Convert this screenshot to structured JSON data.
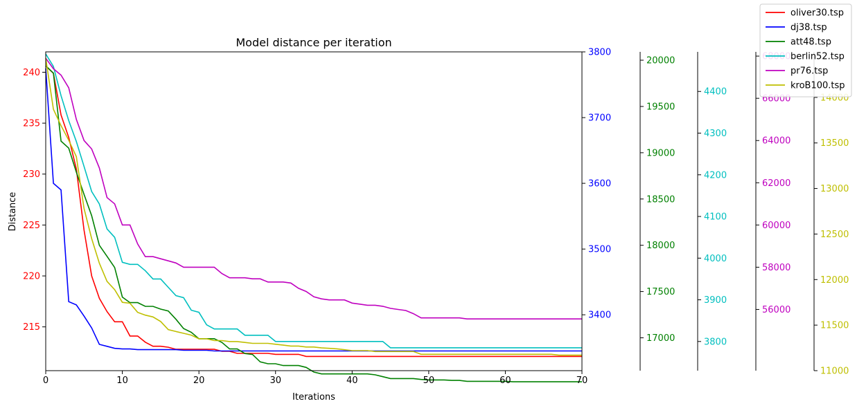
{
  "chart_data": {
    "type": "line",
    "title": "Model distance per iteration",
    "xlabel": "Iterations",
    "ylabel": "Distance",
    "xlim": [
      0,
      70
    ],
    "x_ticks": [
      0,
      10,
      20,
      30,
      40,
      50,
      60,
      70
    ],
    "grid": false,
    "legend_position": "top-right",
    "x": [
      0,
      1,
      2,
      3,
      4,
      5,
      6,
      7,
      8,
      9,
      10,
      11,
      12,
      13,
      14,
      15,
      16,
      17,
      18,
      19,
      20,
      21,
      22,
      23,
      24,
      25,
      26,
      27,
      28,
      29,
      30,
      31,
      32,
      33,
      34,
      35,
      36,
      37,
      38,
      39,
      40,
      41,
      42,
      43,
      44,
      45,
      46,
      47,
      48,
      49,
      50,
      51,
      52,
      53,
      54,
      55,
      56,
      57,
      58,
      59,
      60,
      61,
      62,
      63,
      64,
      65,
      66,
      67,
      68,
      69,
      70
    ],
    "series": [
      {
        "name": "oliver30.tsp",
        "color": "#ff0000",
        "axis": {
          "min": 210.7,
          "max": 242.0,
          "ticks": [
            215,
            220,
            225,
            230,
            235,
            240
          ]
        },
        "values": [
          240.6,
          239.9,
          235.8,
          233.6,
          230.5,
          224.5,
          220.0,
          217.8,
          216.5,
          215.5,
          215.5,
          214.1,
          214.1,
          213.5,
          213.1,
          213.1,
          213.0,
          212.8,
          212.8,
          212.8,
          212.8,
          212.8,
          212.8,
          212.6,
          212.6,
          212.4,
          212.4,
          212.4,
          212.4,
          212.4,
          212.3,
          212.3,
          212.3,
          212.3,
          212.1,
          212.1,
          212.1,
          212.1,
          212.1,
          212.1,
          212.1,
          212.1,
          212.1,
          212.1,
          212.1,
          212.1,
          212.1,
          212.1,
          212.1,
          212.1,
          212.1,
          212.1,
          212.1,
          212.1,
          212.1,
          212.1,
          212.1,
          212.1,
          212.1,
          212.1,
          212.1,
          212.1,
          212.1,
          212.1,
          212.1,
          212.1,
          212.1,
          212.1,
          212.1,
          212.1,
          212.1
        ]
      },
      {
        "name": "dj38.tsp",
        "color": "#0000ff",
        "axis": {
          "min": 3315,
          "max": 3800,
          "ticks": [
            3400,
            3500,
            3600,
            3700,
            3800
          ]
        },
        "values": [
          3775,
          3600,
          3590,
          3420,
          3415,
          3398,
          3380,
          3355,
          3352,
          3349,
          3348,
          3348,
          3347,
          3347,
          3347,
          3347,
          3347,
          3347,
          3346,
          3346,
          3346,
          3346,
          3345,
          3345,
          3345,
          3345,
          3345,
          3345,
          3345,
          3345,
          3345,
          3345,
          3345,
          3345,
          3345,
          3345,
          3345,
          3345,
          3345,
          3345,
          3345,
          3345,
          3345,
          3345,
          3345,
          3345,
          3345,
          3345,
          3345,
          3345,
          3345,
          3345,
          3345,
          3345,
          3345,
          3345,
          3345,
          3345,
          3345,
          3345,
          3345,
          3345,
          3345,
          3345,
          3345,
          3345,
          3345,
          3345,
          3345,
          3345,
          3345
        ]
      },
      {
        "name": "att48.tsp",
        "color": "#008000",
        "axis": {
          "min": 16645,
          "max": 20090,
          "ticks": [
            17000,
            17500,
            18000,
            18500,
            19000,
            19500,
            20000
          ]
        },
        "values": [
          19940,
          19860,
          19125,
          19050,
          18790,
          18550,
          18320,
          18000,
          17880,
          17760,
          17440,
          17380,
          17380,
          17340,
          17340,
          17310,
          17290,
          17200,
          17100,
          17060,
          16990,
          16990,
          16990,
          16950,
          16880,
          16880,
          16830,
          16820,
          16740,
          16720,
          16720,
          16700,
          16700,
          16700,
          16680,
          16630,
          16610,
          16610,
          16610,
          16610,
          16610,
          16610,
          16610,
          16600,
          16580,
          16560,
          16560,
          16560,
          16560,
          16550,
          16545,
          16545,
          16545,
          16540,
          16540,
          16530,
          16530,
          16530,
          16530,
          16530,
          16530,
          16525,
          16525,
          16525,
          16525,
          16525,
          16525,
          16525,
          16525,
          16525,
          16525
        ]
      },
      {
        "name": "berlin52.tsp",
        "color": "#00bfbf",
        "axis": {
          "min": 3730,
          "max": 4495,
          "ticks": [
            3800,
            3900,
            4000,
            4100,
            4200,
            4300,
            4400
          ]
        },
        "values": [
          4490,
          4460,
          4390,
          4330,
          4280,
          4220,
          4160,
          4130,
          4070,
          4050,
          3990,
          3985,
          3985,
          3970,
          3950,
          3950,
          3930,
          3910,
          3905,
          3875,
          3870,
          3840,
          3830,
          3830,
          3830,
          3830,
          3815,
          3815,
          3815,
          3815,
          3800,
          3800,
          3800,
          3800,
          3800,
          3800,
          3800,
          3800,
          3800,
          3800,
          3800,
          3800,
          3800,
          3800,
          3800,
          3785,
          3785,
          3785,
          3785,
          3785,
          3785,
          3785,
          3785,
          3785,
          3785,
          3785,
          3785,
          3785,
          3785,
          3785,
          3785,
          3785,
          3785,
          3785,
          3785,
          3785,
          3785,
          3785,
          3785,
          3785,
          3785
        ]
      },
      {
        "name": "pr76.tsp",
        "color": "#bf00bf",
        "axis": {
          "min": 53100,
          "max": 68200,
          "ticks": [
            56000,
            58000,
            60000,
            62000,
            64000,
            66000,
            68000
          ]
        },
        "values": [
          67900,
          67400,
          67100,
          66500,
          65000,
          64000,
          63600,
          62700,
          61300,
          61000,
          60000,
          60000,
          59100,
          58500,
          58500,
          58400,
          58300,
          58200,
          58000,
          58000,
          58000,
          58000,
          58000,
          57700,
          57500,
          57500,
          57500,
          57450,
          57450,
          57300,
          57300,
          57300,
          57250,
          57000,
          56850,
          56600,
          56500,
          56450,
          56450,
          56450,
          56300,
          56250,
          56200,
          56200,
          56150,
          56050,
          56000,
          55950,
          55800,
          55600,
          55600,
          55600,
          55600,
          55600,
          55600,
          55550,
          55550,
          55550,
          55550,
          55550,
          55550,
          55550,
          55550,
          55550,
          55550,
          55550,
          55550,
          55550,
          55550,
          55550,
          55550
        ]
      },
      {
        "name": "kroB100.tsp",
        "color": "#bfbf00",
        "axis": {
          "min": 11000,
          "max": 14500,
          "ticks": [
            11000,
            11500,
            12000,
            12500,
            13000,
            13500,
            14000
          ]
        },
        "values": [
          14430,
          13870,
          13690,
          13530,
          13350,
          12780,
          12450,
          12180,
          11980,
          11890,
          11750,
          11740,
          11640,
          11610,
          11590,
          11540,
          11450,
          11430,
          11410,
          11390,
          11350,
          11350,
          11330,
          11330,
          11320,
          11320,
          11310,
          11300,
          11300,
          11300,
          11290,
          11280,
          11270,
          11270,
          11260,
          11260,
          11250,
          11245,
          11240,
          11230,
          11220,
          11220,
          11220,
          11210,
          11210,
          11210,
          11210,
          11210,
          11210,
          11180,
          11180,
          11180,
          11180,
          11180,
          11180,
          11180,
          11180,
          11180,
          11180,
          11180,
          11180,
          11180,
          11180,
          11180,
          11180,
          11180,
          11180,
          11170,
          11170,
          11170,
          11170
        ]
      }
    ]
  }
}
